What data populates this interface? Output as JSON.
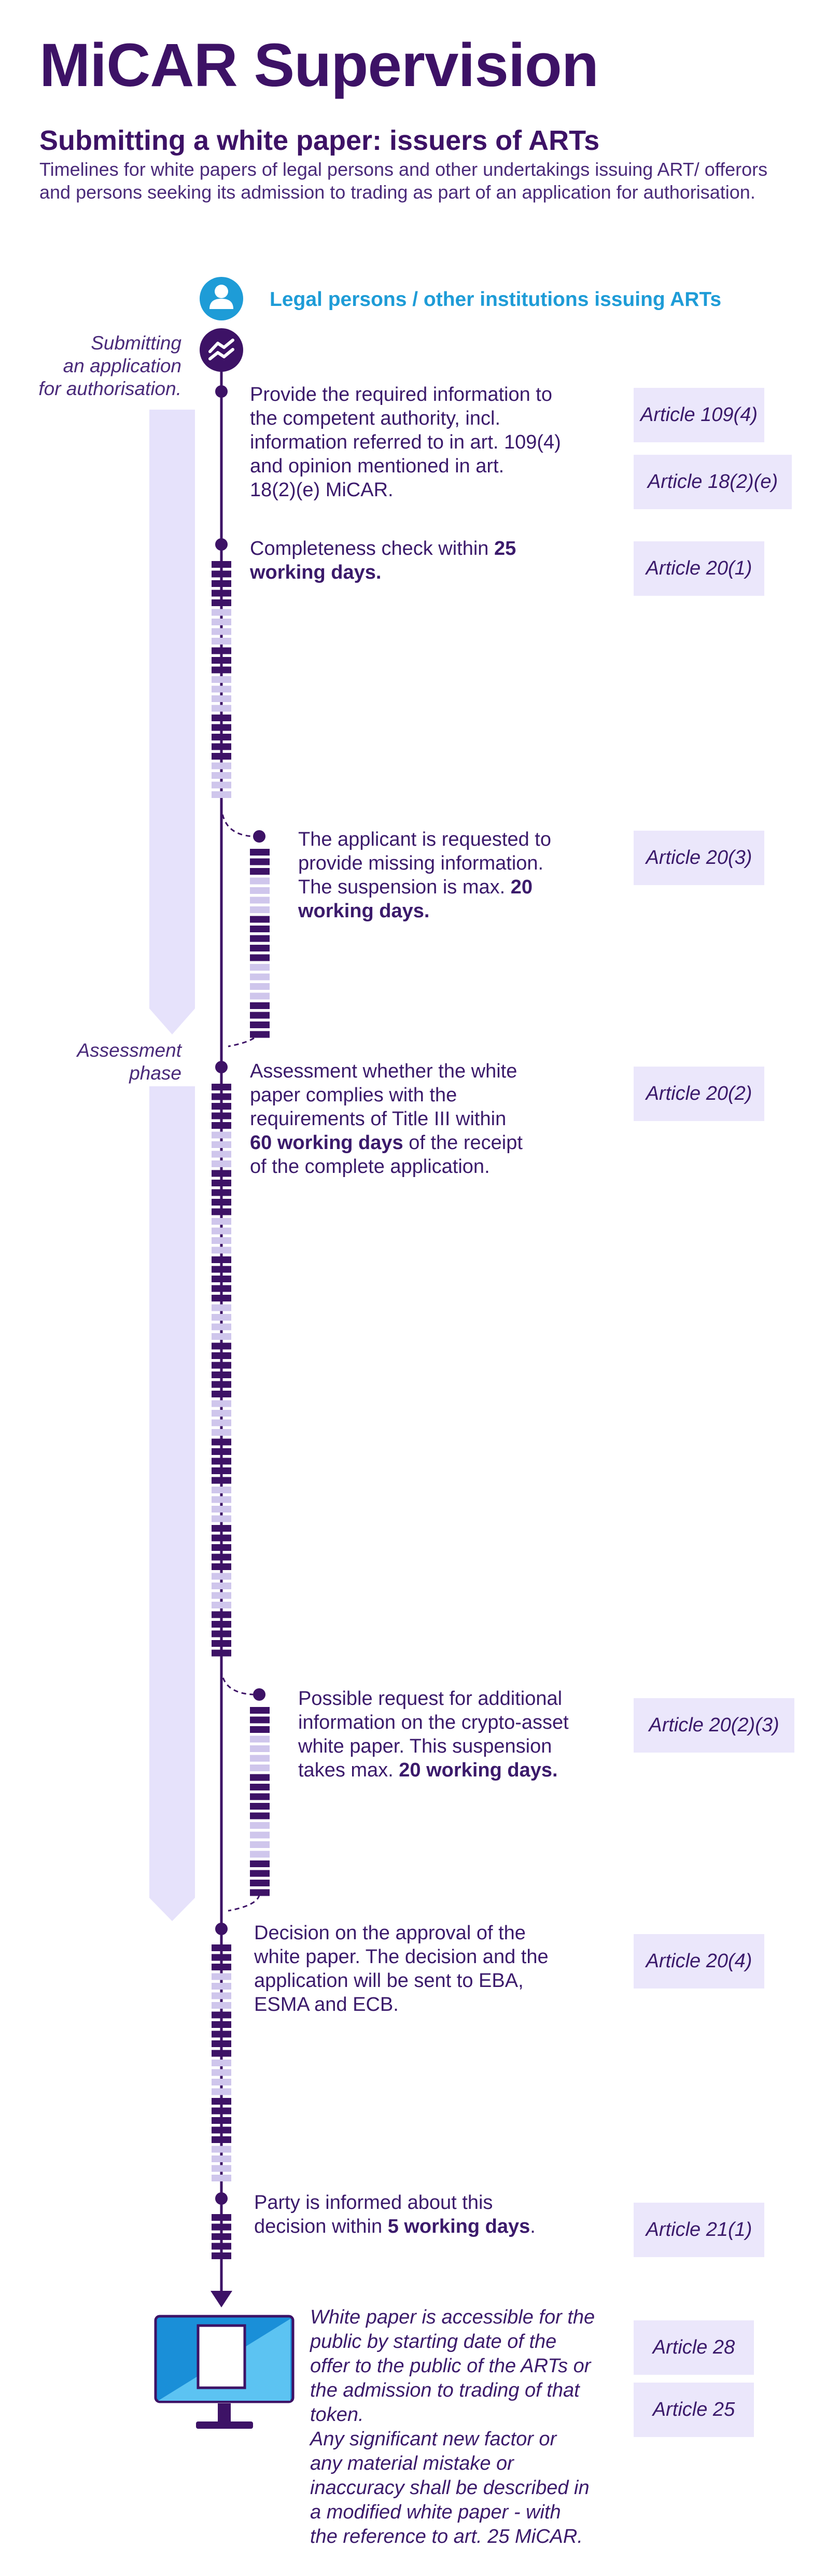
{
  "header": {
    "title": "MiCAR Supervision",
    "subtitle": "Submitting a white paper: issuers of ARTs",
    "intro": "Timelines for white papers of legal persons and other undertakings issuing ART/ offerors and persons seeking its admission to trading as part of an application for authorisation."
  },
  "actor": {
    "label": "Legal persons / other institutions issuing ARTs",
    "icon": "person-icon"
  },
  "phases": {
    "application": [
      "Submitting",
      "an application",
      "for authorisation."
    ],
    "assessment": [
      "Assessment",
      "phase"
    ]
  },
  "steps": {
    "s1": [
      "Provide the required information to",
      "the competent authority, incl.",
      "information referred to in art. 109(4)",
      "and opinion mentioned in art.",
      "18(2)(e) MiCAR."
    ],
    "s2": {
      "t1": "Completeness check within ",
      "b1": "25",
      "b2": "working days."
    },
    "s3": {
      "l1": "The applicant is requested to",
      "l2": "provide missing information.",
      "l3a": "The suspension is max. ",
      "l3b": "20",
      "l4": "working days."
    },
    "s4": {
      "l1": "Assessment whether the white",
      "l2": "paper complies with the",
      "l3": "requirements of Title III within",
      "l4b": "60 working days",
      "l4a": " of the receipt",
      "l5": "of the complete application."
    },
    "s5": {
      "l1": "Possible request for additional",
      "l2": "information on the crypto-asset",
      "l3": "white paper. This suspension",
      "l4a": "takes max. ",
      "l4b": "20 working days."
    },
    "s6": [
      "Decision on the approval of the",
      "white paper. The decision and the",
      "application will be sent to EBA,",
      "ESMA and ECB."
    ],
    "s7": {
      "l1": "Party is informed about this",
      "l2a": "decision within ",
      "l2b": "5 working days",
      "l2c": "."
    },
    "final": [
      "White paper is accessible for the",
      "public by starting date of the",
      "offer to the public of the ARTs or",
      "the admission to trading of that",
      "token.",
      "Any significant new factor or",
      "any material mistake or",
      "inaccuracy shall be described in",
      "a modified white paper - with",
      "the reference to art. 25 MiCAR."
    ]
  },
  "articles": {
    "a1": "Article 109(4)",
    "a2": "Article 18(2)(e)",
    "a3": "Article 20(1)",
    "a4": "Article 20(3)",
    "a5": "Article 20(2)",
    "a6": "Article 20(2)(3)",
    "a7": "Article 20(4)",
    "a8": "Article 21(1)",
    "a9": "Article 28",
    "a10": "Article 25"
  },
  "colors": {
    "primary": "#3d1266",
    "accent_blue": "#1e9cd7",
    "light_lavender": "#e6e2fb",
    "day_light": "#cfc6ec",
    "day_dark": "#3d1266",
    "monitor_blue": "#1a8fd8"
  }
}
